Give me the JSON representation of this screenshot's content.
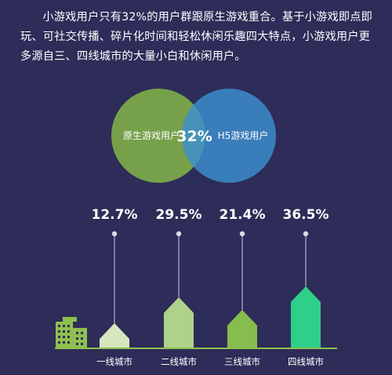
{
  "intro_text": "小游戏用户只有32%的用户群跟原生游戏重合。基于小游戏即点即玩、可社交传播、碎片化时间和轻松休闲乐趣四大特点，小游戏用户更多源自三、四线城市的大量小白和休闲用户。",
  "venn": {
    "left_label": "原生游戏用户",
    "right_label": "H5游戏用户",
    "overlap_label": "32%",
    "left_color": "#7aa84a",
    "right_color": "#3d8fd1"
  },
  "chart_data": {
    "type": "bar",
    "categories": [
      "一线城市",
      "二线城市",
      "三线城市",
      "四线城市"
    ],
    "values": [
      12.7,
      29.5,
      21.4,
      36.5
    ],
    "value_labels": [
      "12.7%",
      "29.5%",
      "21.4%",
      "36.5%"
    ],
    "colors": [
      "#d6e7c0",
      "#aed18c",
      "#86bd4e",
      "#2fcf8a"
    ],
    "ylim": [
      0,
      40
    ],
    "grid": false,
    "legend": "none"
  }
}
